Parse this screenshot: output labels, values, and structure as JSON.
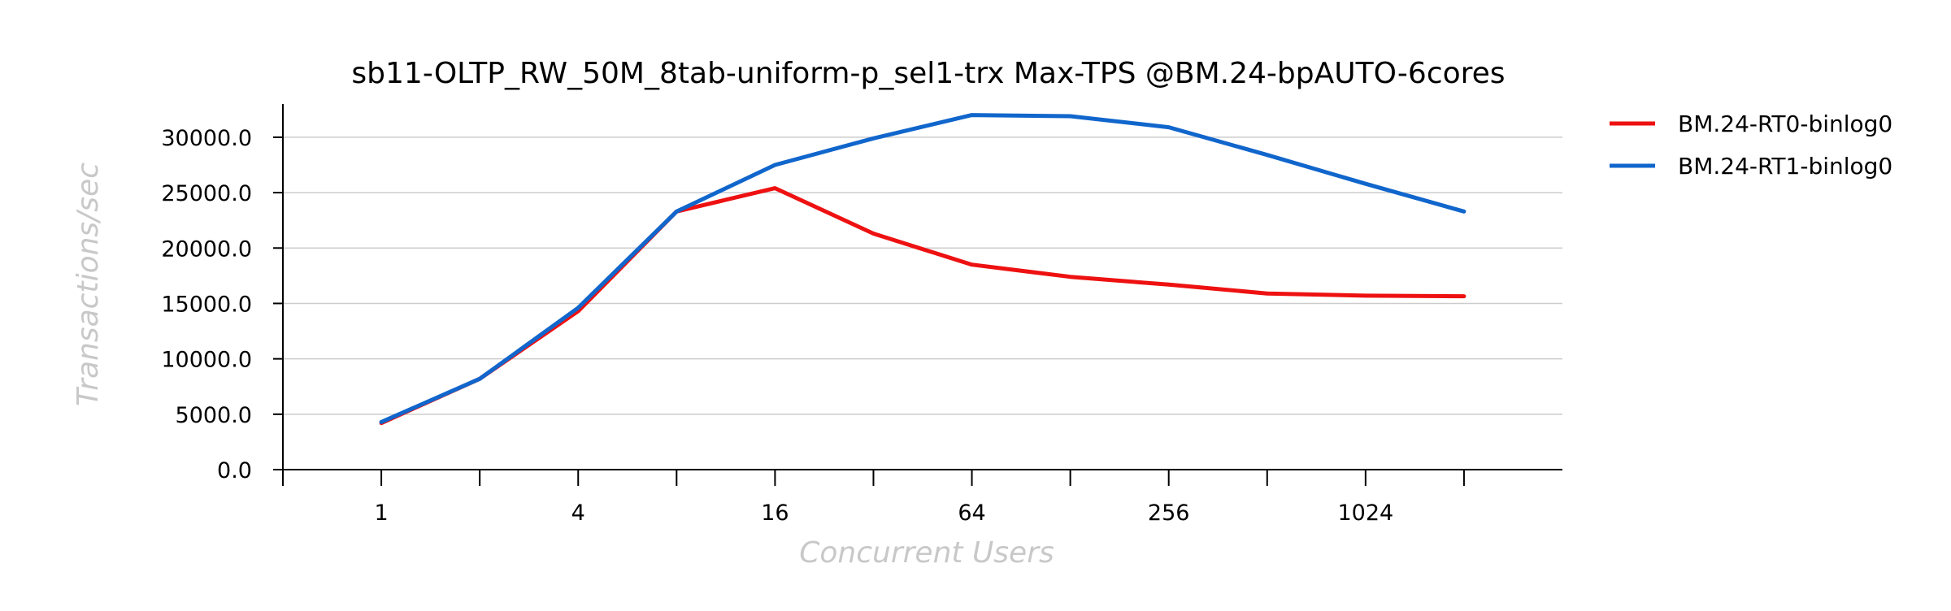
{
  "chart_data": {
    "type": "line",
    "title": "sb11-OLTP_RW_50M_8tab-uniform-p_sel1-trx Max-TPS @BM.24-bpAUTO-6cores",
    "xlabel": "Concurrent Users",
    "ylabel": "Transactions/sec",
    "x_scale": "log2",
    "x": [
      1,
      2,
      4,
      8,
      16,
      32,
      64,
      128,
      256,
      512,
      1024,
      2048
    ],
    "xticks": [
      1,
      2,
      4,
      8,
      16,
      32,
      64,
      128,
      256,
      512,
      1024,
      2048
    ],
    "xtick_labels": [
      "1",
      "",
      "4",
      "",
      "16",
      "",
      "64",
      "",
      "256",
      "",
      "1024",
      ""
    ],
    "xlim": [
      0.5,
      4096
    ],
    "ylim": [
      0,
      33000
    ],
    "yticks": [
      0,
      5000,
      10000,
      15000,
      20000,
      25000,
      30000
    ],
    "ytick_labels": [
      "0.0",
      "5000.0",
      "10000.0",
      "15000.0",
      "20000.0",
      "25000.0",
      "30000.0"
    ],
    "grid": "horizontal",
    "legend_position": "outside-top-right",
    "series": [
      {
        "name": "BM.24-RT0-binlog0",
        "color": "#ee1111",
        "values": [
          4200,
          8200,
          14300,
          23300,
          25400,
          21300,
          18500,
          17400,
          16700,
          15900,
          15700,
          15650
        ]
      },
      {
        "name": "BM.24-RT1-binlog0",
        "color": "#1166cc",
        "values": [
          4300,
          8200,
          14600,
          23300,
          27500,
          29900,
          32000,
          31900,
          30900,
          28400,
          25800,
          23300
        ]
      }
    ]
  }
}
